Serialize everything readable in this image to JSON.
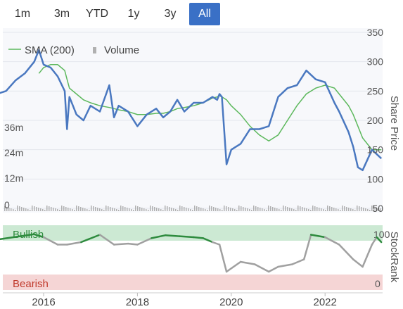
{
  "range_buttons": [
    {
      "label": "1m",
      "active": false
    },
    {
      "label": "3m",
      "active": false
    },
    {
      "label": "YTD",
      "active": false
    },
    {
      "label": "1y",
      "active": false
    },
    {
      "label": "3y",
      "active": false
    },
    {
      "label": "All",
      "active": true
    }
  ],
  "legend": {
    "sma_label": "SMA (200)",
    "volume_label": "Volume"
  },
  "colors": {
    "price": "#4a78c0",
    "sma": "#5cb85c",
    "volume": "#b0b0b0",
    "bullish_bg": "#cce9d3",
    "bearish_bg": "#f5d5d5",
    "rank_bull": "#2e8b3e",
    "rank_neutral": "#a0a0a0",
    "active_button": "#3a70c6"
  },
  "chart_data": [
    {
      "type": "line",
      "ylabel": "Share Price",
      "ylim": [
        50,
        350
      ],
      "y_ticks": [
        "50",
        "100",
        "150",
        "200",
        "250",
        "300",
        "350"
      ],
      "volume_ticks": [
        "0",
        "12m",
        "24m",
        "36m"
      ],
      "x_ticks": [
        "2016",
        "2018",
        "2020",
        "2022"
      ],
      "x": [
        2015.0,
        2015.2,
        2015.4,
        2015.6,
        2015.8,
        2015.9,
        2016.0,
        2016.15,
        2016.3,
        2016.45,
        2016.5,
        2016.55,
        2016.7,
        2016.85,
        2017.0,
        2017.2,
        2017.4,
        2017.5,
        2017.6,
        2017.8,
        2018.0,
        2018.2,
        2018.4,
        2018.55,
        2018.7,
        2018.85,
        2019.0,
        2019.2,
        2019.4,
        2019.6,
        2019.7,
        2019.75,
        2019.8,
        2019.9,
        2020.0,
        2020.2,
        2020.4,
        2020.6,
        2020.8,
        2021.0,
        2021.2,
        2021.4,
        2021.6,
        2021.8,
        2022.0,
        2022.2,
        2022.3,
        2022.5,
        2022.6,
        2022.7,
        2022.8,
        2023.0,
        2023.2
      ],
      "series": [
        {
          "name": "Price",
          "values": [
            245,
            250,
            268,
            280,
            300,
            320,
            295,
            290,
            275,
            250,
            185,
            240,
            210,
            200,
            225,
            215,
            260,
            205,
            225,
            215,
            190,
            210,
            220,
            205,
            215,
            235,
            215,
            230,
            230,
            240,
            235,
            245,
            240,
            125,
            150,
            160,
            185,
            185,
            190,
            240,
            255,
            260,
            285,
            270,
            265,
            230,
            215,
            180,
            155,
            120,
            115,
            150,
            135
          ]
        },
        {
          "name": "SMA (200)",
          "values": [
            null,
            null,
            null,
            null,
            null,
            280,
            290,
            295,
            295,
            285,
            270,
            255,
            245,
            235,
            230,
            225,
            222,
            220,
            218,
            215,
            210,
            210,
            212,
            212,
            215,
            220,
            222,
            225,
            230,
            238,
            240,
            242,
            240,
            235,
            225,
            210,
            190,
            175,
            165,
            175,
            200,
            225,
            245,
            255,
            260,
            255,
            245,
            225,
            210,
            190,
            170,
            150,
            150
          ]
        }
      ]
    },
    {
      "type": "line",
      "ylabel": "StockRank",
      "y_ticks": [
        "0",
        "100"
      ],
      "band_labels": {
        "top": "Bullish",
        "bottom": "Bearish"
      },
      "ylim": [
        0,
        100
      ],
      "x": [
        2015.0,
        2015.5,
        2015.8,
        2016.0,
        2016.3,
        2016.5,
        2016.8,
        2017.2,
        2017.5,
        2017.8,
        2018.0,
        2018.3,
        2018.6,
        2018.9,
        2019.2,
        2019.4,
        2019.6,
        2019.75,
        2019.9,
        2020.2,
        2020.5,
        2020.8,
        2021.0,
        2021.3,
        2021.55,
        2021.7,
        2022.0,
        2022.3,
        2022.6,
        2022.8,
        2023.0,
        2023.1,
        2023.2
      ],
      "series": [
        {
          "name": "StockRank",
          "values": [
            85,
            92,
            96,
            90,
            75,
            75,
            80,
            95,
            75,
            77,
            75,
            88,
            94,
            92,
            90,
            88,
            80,
            75,
            20,
            40,
            35,
            20,
            30,
            35,
            45,
            95,
            90,
            75,
            45,
            30,
            75,
            90,
            80
          ]
        }
      ]
    }
  ]
}
